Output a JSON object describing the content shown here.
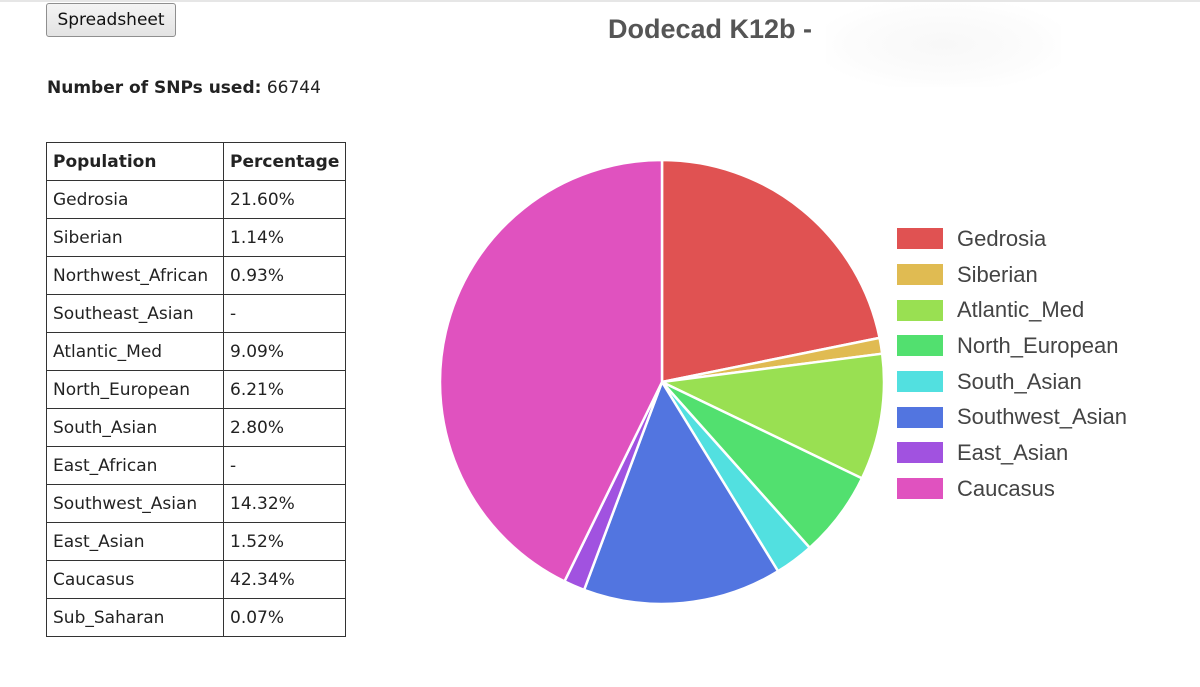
{
  "toolbar": {
    "spreadsheet_label": "Spreadsheet"
  },
  "summary": {
    "snps_label": "Number of SNPs used:",
    "snps_value": "66744"
  },
  "table": {
    "headers": [
      "Population",
      "Percentage"
    ],
    "rows": [
      [
        "Gedrosia",
        "21.60%"
      ],
      [
        "Siberian",
        "1.14%"
      ],
      [
        "Northwest_African",
        "0.93%"
      ],
      [
        "Southeast_Asian",
        "-"
      ],
      [
        "Atlantic_Med",
        "9.09%"
      ],
      [
        "North_European",
        "6.21%"
      ],
      [
        "South_Asian",
        "2.80%"
      ],
      [
        "East_African",
        "-"
      ],
      [
        "Southwest_Asian",
        "14.32%"
      ],
      [
        "East_Asian",
        "1.52%"
      ],
      [
        "Caucasus",
        "42.34%"
      ],
      [
        "Sub_Saharan",
        "0.07%"
      ]
    ]
  },
  "chart_data": {
    "type": "pie",
    "title": "Dodecad K12b -",
    "categories": [
      "Gedrosia",
      "Siberian",
      "Atlantic_Med",
      "North_European",
      "South_Asian",
      "Southwest_Asian",
      "East_Asian",
      "Caucasus"
    ],
    "values": [
      21.6,
      1.14,
      9.09,
      6.21,
      2.8,
      14.32,
      1.52,
      42.34
    ],
    "colors": [
      "#e05252",
      "#e0bb52",
      "#99e052",
      "#52e06f",
      "#52e0e0",
      "#5275e0",
      "#a152e0",
      "#e052bf"
    ],
    "start_angle": "12 o'clock",
    "direction": "clockwise",
    "legend_position": "right"
  }
}
